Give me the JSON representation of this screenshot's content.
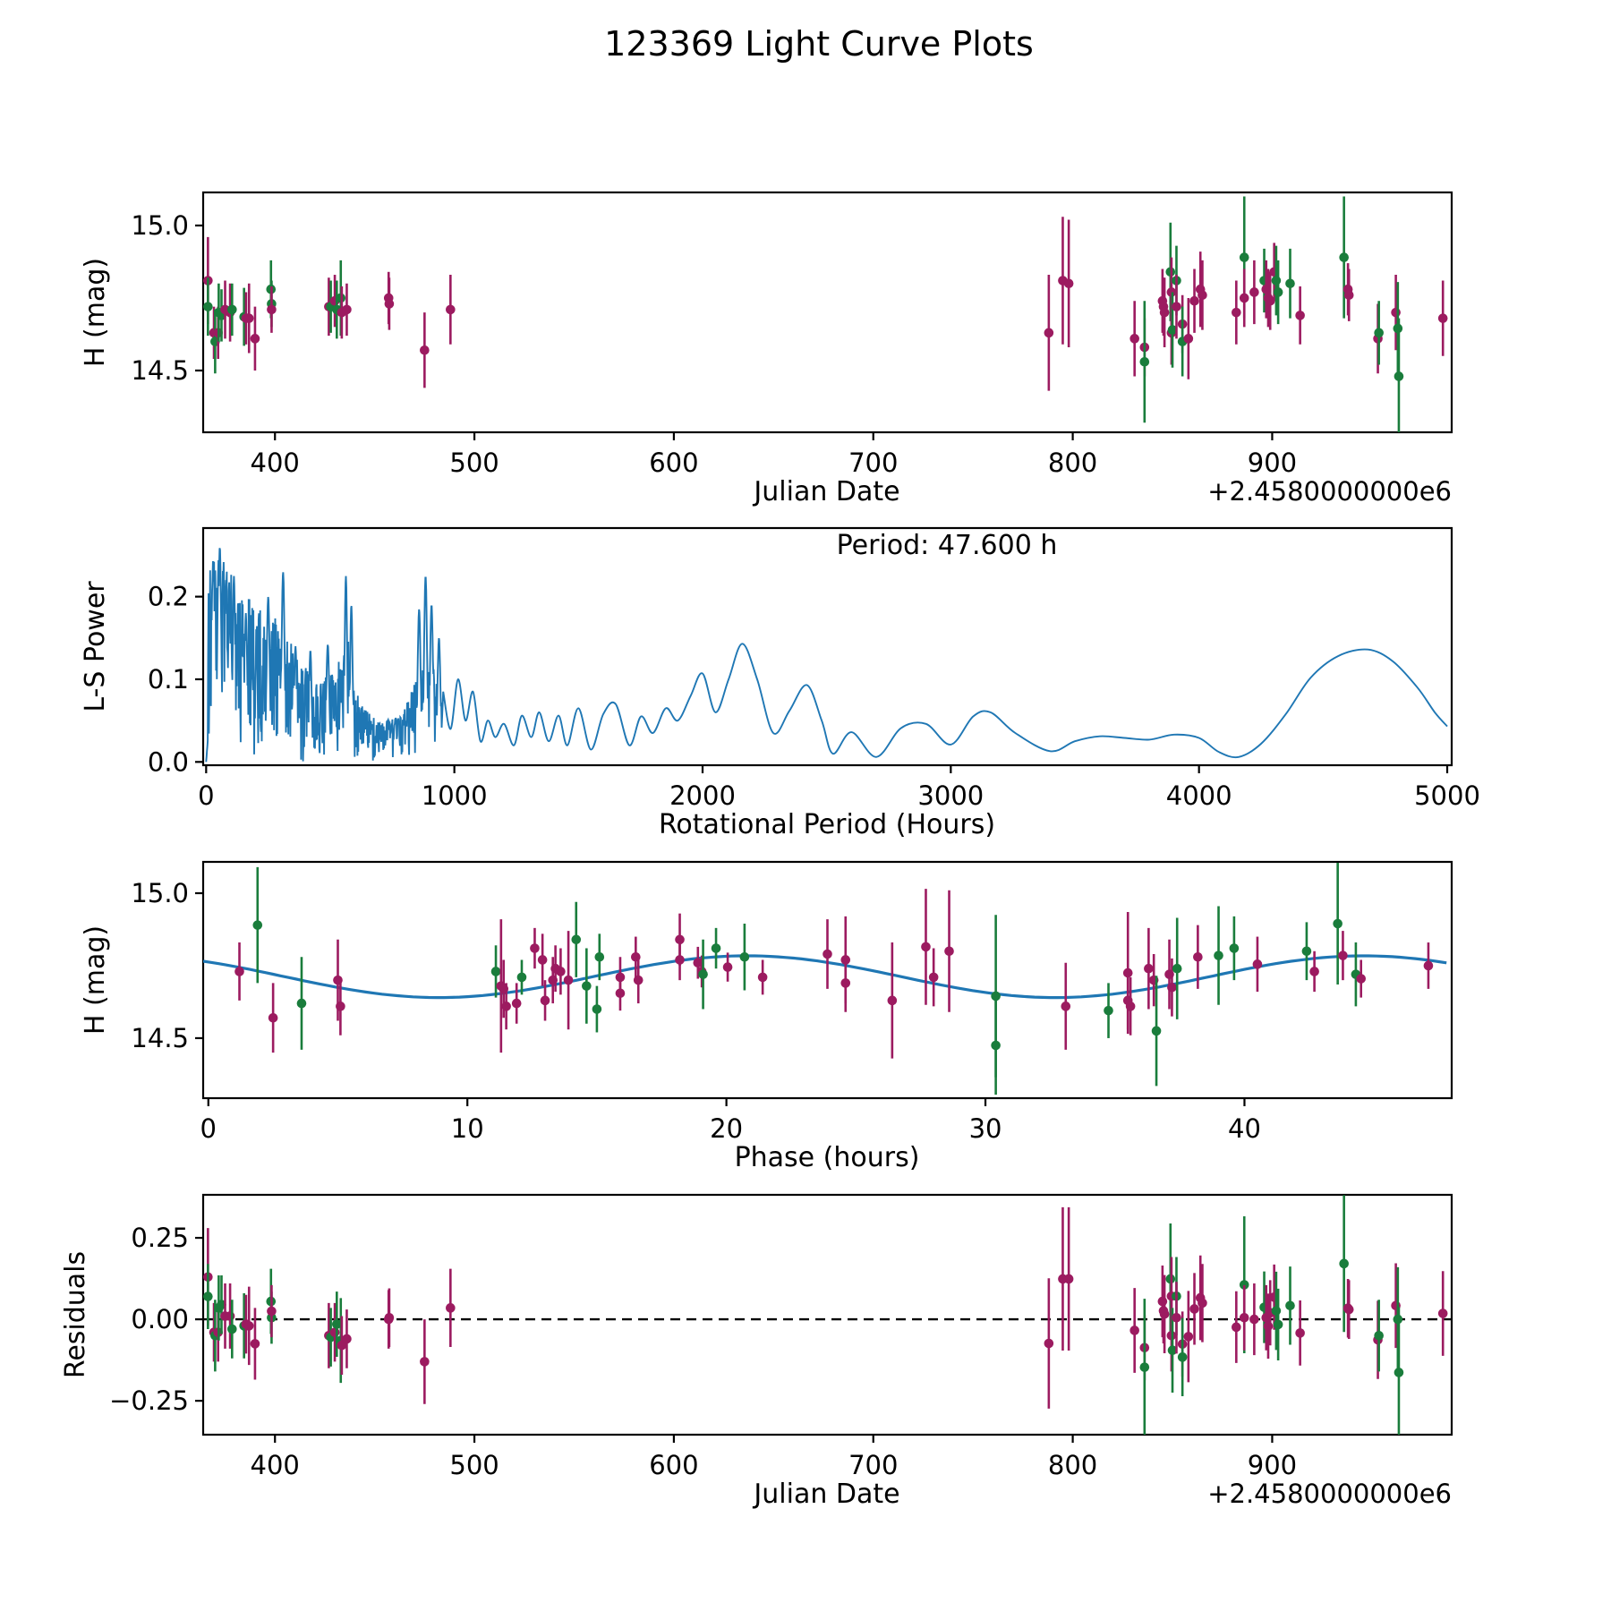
{
  "title": "123369 Light Curve Plots",
  "colors": {
    "background": "#ffffff",
    "axis": "#000000",
    "line_blue": "#1f77b4",
    "series_purple": "#9c1b60",
    "series_green": "#1a7d3c"
  },
  "panels": {
    "jd_mag": {
      "ylabel": "H (mag)",
      "xlabel": "Julian Date",
      "offset_label": "+2.4580000000e6",
      "x_tick_labels": [
        "400",
        "500",
        "600",
        "700",
        "800",
        "900"
      ],
      "x_tick_values": [
        400,
        500,
        600,
        700,
        800,
        900
      ],
      "y_tick_labels": [
        "15.0",
        "14.5"
      ],
      "y_tick_values": [
        15.0,
        14.5
      ],
      "xlim": [
        364,
        990
      ],
      "ylim": [
        14.287,
        15.114
      ]
    },
    "periodogram": {
      "ylabel": "L-S Power",
      "xlabel": "Rotational Period (Hours)",
      "annotation": "Period: 47.600 h",
      "x_tick_labels": [
        "0",
        "1000",
        "2000",
        "3000",
        "4000",
        "5000"
      ],
      "x_tick_values": [
        0,
        1000,
        2000,
        3000,
        4000,
        5000
      ],
      "y_tick_labels": [
        "0.0",
        "0.1",
        "0.2"
      ],
      "y_tick_values": [
        0.0,
        0.1,
        0.2
      ],
      "xlim": [
        -12,
        5018
      ],
      "ylim": [
        -0.004,
        0.283
      ]
    },
    "phase": {
      "ylabel": "H (mag)",
      "xlabel": "Phase (hours)",
      "x_tick_labels": [
        "0",
        "10",
        "20",
        "30",
        "40"
      ],
      "x_tick_values": [
        0,
        10,
        20,
        30,
        40
      ],
      "y_tick_labels": [
        "15.0",
        "14.5"
      ],
      "y_tick_values": [
        15.0,
        14.5
      ],
      "xlim": [
        -0.2,
        48.0
      ],
      "ylim": [
        14.293,
        15.108
      ]
    },
    "residuals": {
      "ylabel": "Residuals",
      "xlabel": "Julian Date",
      "offset_label": "+2.4580000000e6",
      "x_tick_labels": [
        "400",
        "500",
        "600",
        "700",
        "800",
        "900"
      ],
      "x_tick_values": [
        400,
        500,
        600,
        700,
        800,
        900
      ],
      "y_tick_labels": [
        "−0.25",
        "0.00",
        "0.25"
      ],
      "y_tick_values": [
        -0.25,
        0.0,
        0.25
      ],
      "xlim": [
        364,
        990
      ],
      "ylim": [
        -0.354,
        0.382
      ],
      "zero_line": 0.0
    }
  },
  "chart_data": {
    "type": "multi-panel: errorbar scatter (panels 1,3,4) + line periodogram (panel 2)",
    "period_hours": 47.6,
    "jd_offset": 2458000000,
    "fit_curve": {
      "mean_mag": 14.712,
      "amplitude_mag": 0.072,
      "cosine_period_hours": 23.8,
      "phase_of_max_hours": 20.8
    },
    "point_format": "jd_points: [JD-2458000000, H mag, err, residual, color]; phase_points: [phase h, H mag, err, color]",
    "jd_points": [
      [
        366.4,
        14.81,
        0.15,
        0.13,
        "p"
      ],
      [
        366.4,
        14.72,
        0.1,
        0.07,
        "g"
      ],
      [
        369.4,
        14.63,
        0.09,
        -0.04,
        "p"
      ],
      [
        370.0,
        14.6,
        0.11,
        -0.05,
        "g"
      ],
      [
        371.5,
        14.63,
        0.09,
        -0.04,
        "p"
      ],
      [
        371.8,
        14.7,
        0.1,
        0.035,
        "g"
      ],
      [
        373.2,
        14.69,
        0.09,
        0.045,
        "g"
      ],
      [
        375.0,
        14.71,
        0.1,
        0.01,
        "p"
      ],
      [
        377.5,
        14.7,
        0.1,
        0.01,
        "p"
      ],
      [
        378.5,
        14.71,
        0.09,
        -0.03,
        "g"
      ],
      [
        384.5,
        14.685,
        0.1,
        -0.02,
        "g"
      ],
      [
        385.5,
        14.68,
        0.09,
        -0.015,
        "p"
      ],
      [
        387.0,
        14.68,
        0.12,
        -0.02,
        "p"
      ],
      [
        390.0,
        14.61,
        0.11,
        -0.075,
        "p"
      ],
      [
        398.0,
        14.78,
        0.1,
        0.055,
        "g"
      ],
      [
        398.3,
        14.73,
        0.08,
        0.005,
        "g"
      ],
      [
        398.3,
        14.71,
        0.08,
        0.025,
        "p"
      ],
      [
        427.0,
        14.72,
        0.1,
        -0.05,
        "p"
      ],
      [
        428.0,
        14.72,
        0.09,
        -0.055,
        "g"
      ],
      [
        430.0,
        14.74,
        0.09,
        -0.04,
        "p"
      ],
      [
        431.0,
        14.71,
        0.1,
        -0.015,
        "g"
      ],
      [
        433.0,
        14.75,
        0.13,
        -0.065,
        "g"
      ],
      [
        433.5,
        14.7,
        0.09,
        -0.08,
        "p"
      ],
      [
        436.0,
        14.71,
        0.09,
        -0.06,
        "p"
      ],
      [
        457.0,
        14.75,
        0.09,
        0.0,
        "p"
      ],
      [
        457.3,
        14.73,
        0.09,
        0.005,
        "p"
      ],
      [
        475.0,
        14.57,
        0.13,
        -0.13,
        "p"
      ],
      [
        488.0,
        14.71,
        0.12,
        0.035,
        "p"
      ],
      [
        788,
        14.63,
        0.2,
        -0.074,
        "p"
      ],
      [
        795,
        14.81,
        0.22,
        0.124,
        "p"
      ],
      [
        798,
        14.8,
        0.22,
        0.124,
        "p"
      ],
      [
        831,
        14.61,
        0.13,
        -0.034,
        "p"
      ],
      [
        836,
        14.58,
        0.1,
        -0.087,
        "p"
      ],
      [
        836,
        14.53,
        0.21,
        -0.147,
        "g"
      ],
      [
        845,
        14.74,
        0.11,
        0.055,
        "p"
      ],
      [
        845.5,
        14.72,
        0.1,
        0.026,
        "p"
      ],
      [
        846,
        14.7,
        0.12,
        0.016,
        "p"
      ],
      [
        849,
        14.84,
        0.17,
        0.124,
        "g"
      ],
      [
        849.5,
        14.77,
        0.12,
        0.071,
        "p"
      ],
      [
        849.5,
        14.63,
        0.11,
        -0.05,
        "p"
      ],
      [
        850,
        14.64,
        0.13,
        -0.095,
        "g"
      ],
      [
        852,
        14.81,
        0.12,
        0.071,
        "g"
      ],
      [
        852,
        14.72,
        0.11,
        0.005,
        "p"
      ],
      [
        855,
        14.66,
        0.1,
        -0.076,
        "p"
      ],
      [
        855,
        14.6,
        0.12,
        -0.116,
        "g"
      ],
      [
        858,
        14.61,
        0.14,
        -0.053,
        "p"
      ],
      [
        861,
        14.74,
        0.11,
        0.032,
        "p"
      ],
      [
        864,
        14.78,
        0.13,
        0.066,
        "p"
      ],
      [
        865,
        14.76,
        0.12,
        0.05,
        "p"
      ],
      [
        882,
        14.7,
        0.11,
        -0.024,
        "p"
      ],
      [
        886,
        14.89,
        0.21,
        0.106,
        "g"
      ],
      [
        886,
        14.75,
        0.1,
        0.005,
        "p"
      ],
      [
        891,
        14.77,
        0.11,
        0.0,
        "p"
      ],
      [
        896,
        14.81,
        0.11,
        0.037,
        "g"
      ],
      [
        897,
        14.78,
        0.1,
        0.005,
        "p"
      ],
      [
        898,
        14.75,
        0.1,
        -0.021,
        "p"
      ],
      [
        899,
        14.74,
        0.1,
        0.02,
        "p"
      ],
      [
        901,
        14.84,
        0.1,
        0.068,
        "p"
      ],
      [
        902,
        14.81,
        0.12,
        0.026,
        "g"
      ],
      [
        903,
        14.77,
        0.11,
        -0.016,
        "g"
      ],
      [
        909,
        14.8,
        0.12,
        0.042,
        "g"
      ],
      [
        914,
        14.69,
        0.1,
        -0.042,
        "p"
      ],
      [
        936,
        14.89,
        0.21,
        0.171,
        "g"
      ],
      [
        938,
        14.78,
        0.09,
        0.034,
        "p"
      ],
      [
        938.5,
        14.76,
        0.09,
        0.03,
        "p"
      ],
      [
        953,
        14.61,
        0.12,
        -0.063,
        "p"
      ],
      [
        953.5,
        14.63,
        0.11,
        -0.05,
        "g"
      ],
      [
        962,
        14.7,
        0.13,
        0.042,
        "p"
      ],
      [
        963,
        14.645,
        0.16,
        0.0,
        "g"
      ],
      [
        963.5,
        14.48,
        0.2,
        -0.163,
        "g"
      ],
      [
        985.6,
        14.68,
        0.13,
        0.018,
        "p"
      ]
    ],
    "phase_points": [
      [
        1.2,
        14.73,
        0.1,
        "p"
      ],
      [
        1.9,
        14.89,
        0.2,
        "g"
      ],
      [
        2.5,
        14.57,
        0.12,
        "p"
      ],
      [
        3.6,
        14.62,
        0.16,
        "g"
      ],
      [
        5.0,
        14.7,
        0.14,
        "p"
      ],
      [
        5.1,
        14.61,
        0.1,
        "p"
      ],
      [
        11.1,
        14.73,
        0.09,
        "g"
      ],
      [
        11.3,
        14.68,
        0.23,
        "p"
      ],
      [
        11.4,
        14.67,
        0.1,
        "p"
      ],
      [
        11.5,
        14.61,
        0.08,
        "p"
      ],
      [
        11.9,
        14.62,
        0.07,
        "p"
      ],
      [
        12.1,
        14.71,
        0.06,
        "g"
      ],
      [
        12.6,
        14.81,
        0.07,
        "p"
      ],
      [
        12.9,
        14.77,
        0.09,
        "p"
      ],
      [
        13.0,
        14.63,
        0.07,
        "p"
      ],
      [
        13.3,
        14.7,
        0.08,
        "p"
      ],
      [
        13.4,
        14.74,
        0.08,
        "p"
      ],
      [
        13.6,
        14.73,
        0.08,
        "p"
      ],
      [
        13.9,
        14.7,
        0.17,
        "p"
      ],
      [
        14.2,
        14.84,
        0.13,
        "g"
      ],
      [
        14.6,
        14.68,
        0.13,
        "g"
      ],
      [
        15.0,
        14.6,
        0.08,
        "g"
      ],
      [
        15.1,
        14.78,
        0.08,
        "g"
      ],
      [
        15.9,
        14.71,
        0.07,
        "p"
      ],
      [
        15.9,
        14.655,
        0.06,
        "p"
      ],
      [
        16.5,
        14.78,
        0.07,
        "p"
      ],
      [
        16.6,
        14.7,
        0.08,
        "p"
      ],
      [
        18.2,
        14.84,
        0.09,
        "p"
      ],
      [
        18.2,
        14.77,
        0.07,
        "p"
      ],
      [
        18.9,
        14.76,
        0.055,
        "p"
      ],
      [
        19.05,
        14.73,
        0.055,
        "p"
      ],
      [
        19.1,
        14.72,
        0.12,
        "g"
      ],
      [
        19.6,
        14.81,
        0.07,
        "g"
      ],
      [
        20.05,
        14.745,
        0.05,
        "p"
      ],
      [
        20.7,
        14.78,
        0.115,
        "g"
      ],
      [
        21.4,
        14.71,
        0.06,
        "p"
      ],
      [
        23.9,
        14.79,
        0.12,
        "p"
      ],
      [
        24.6,
        14.77,
        0.15,
        "p"
      ],
      [
        24.6,
        14.69,
        0.1,
        "p"
      ],
      [
        26.4,
        14.63,
        0.2,
        "p"
      ],
      [
        27.7,
        14.815,
        0.2,
        "p"
      ],
      [
        28.0,
        14.71,
        0.1,
        "p"
      ],
      [
        28.6,
        14.8,
        0.21,
        "p"
      ],
      [
        30.4,
        14.645,
        0.28,
        "g"
      ],
      [
        30.4,
        14.475,
        0.17,
        "g"
      ],
      [
        33.1,
        14.61,
        0.15,
        "p"
      ],
      [
        34.75,
        14.595,
        0.095,
        "g"
      ],
      [
        35.5,
        14.725,
        0.21,
        "p"
      ],
      [
        35.5,
        14.63,
        0.1,
        "p"
      ],
      [
        35.6,
        14.61,
        0.1,
        "p"
      ],
      [
        36.3,
        14.74,
        0.14,
        "p"
      ],
      [
        36.5,
        14.7,
        0.09,
        "p"
      ],
      [
        36.6,
        14.525,
        0.19,
        "g"
      ],
      [
        37.1,
        14.72,
        0.12,
        "p"
      ],
      [
        37.2,
        14.675,
        0.1,
        "p"
      ],
      [
        37.4,
        14.74,
        0.175,
        "g"
      ],
      [
        38.2,
        14.78,
        0.11,
        "p"
      ],
      [
        39.0,
        14.785,
        0.17,
        "g"
      ],
      [
        39.6,
        14.81,
        0.11,
        "g"
      ],
      [
        40.5,
        14.755,
        0.095,
        "p"
      ],
      [
        42.4,
        14.8,
        0.1,
        "g"
      ],
      [
        42.7,
        14.73,
        0.07,
        "p"
      ],
      [
        43.6,
        14.895,
        0.21,
        "g"
      ],
      [
        43.8,
        14.785,
        0.085,
        "p"
      ],
      [
        44.3,
        14.72,
        0.11,
        "g"
      ],
      [
        44.5,
        14.705,
        0.065,
        "p"
      ],
      [
        47.1,
        14.75,
        0.08,
        "p"
      ]
    ],
    "periodogram": {
      "noise_region_hours": [
        0,
        950
      ],
      "noise_envelope": [
        [
          0,
          0.23
        ],
        [
          40,
          0.26
        ],
        [
          120,
          0.22
        ],
        [
          200,
          0.19
        ],
        [
          300,
          0.17
        ],
        [
          380,
          0.12
        ],
        [
          450,
          0.1
        ],
        [
          520,
          0.11
        ],
        [
          570,
          0.15
        ],
        [
          620,
          0.07
        ],
        [
          700,
          0.05
        ],
        [
          790,
          0.055
        ],
        [
          830,
          0.09
        ],
        [
          900,
          0.13
        ],
        [
          950,
          0.08
        ]
      ],
      "peaks": [
        [
          28,
          0.245,
          5
        ],
        [
          55,
          0.26,
          6
        ],
        [
          80,
          0.22,
          5
        ],
        [
          112,
          0.225,
          5
        ],
        [
          160,
          0.18,
          5
        ],
        [
          250,
          0.2,
          6
        ],
        [
          310,
          0.23,
          6
        ],
        [
          360,
          0.14,
          5
        ],
        [
          420,
          0.135,
          5
        ],
        [
          490,
          0.142,
          6
        ],
        [
          563,
          0.225,
          5
        ],
        [
          585,
          0.19,
          5
        ],
        [
          858,
          0.185,
          6
        ],
        [
          884,
          0.225,
          6
        ],
        [
          908,
          0.19,
          6
        ],
        [
          938,
          0.15,
          6
        ]
      ],
      "smooth_points": [
        [
          955,
          0.085
        ],
        [
          985,
          0.04
        ],
        [
          1015,
          0.1
        ],
        [
          1045,
          0.05
        ],
        [
          1075,
          0.085
        ],
        [
          1105,
          0.025
        ],
        [
          1135,
          0.05
        ],
        [
          1165,
          0.03
        ],
        [
          1200,
          0.046
        ],
        [
          1240,
          0.02
        ],
        [
          1272,
          0.056
        ],
        [
          1310,
          0.03
        ],
        [
          1342,
          0.06
        ],
        [
          1380,
          0.025
        ],
        [
          1420,
          0.056
        ],
        [
          1455,
          0.02
        ],
        [
          1500,
          0.065
        ],
        [
          1550,
          0.015
        ],
        [
          1600,
          0.058
        ],
        [
          1650,
          0.07
        ],
        [
          1705,
          0.02
        ],
        [
          1752,
          0.055
        ],
        [
          1800,
          0.035
        ],
        [
          1852,
          0.065
        ],
        [
          1900,
          0.05
        ],
        [
          1952,
          0.08
        ],
        [
          2000,
          0.107
        ],
        [
          2052,
          0.06
        ],
        [
          2105,
          0.1
        ],
        [
          2160,
          0.143
        ],
        [
          2220,
          0.1
        ],
        [
          2285,
          0.035
        ],
        [
          2350,
          0.062
        ],
        [
          2420,
          0.093
        ],
        [
          2480,
          0.05
        ],
        [
          2525,
          0.01
        ],
        [
          2600,
          0.036
        ],
        [
          2700,
          0.006
        ],
        [
          2800,
          0.041
        ],
        [
          2900,
          0.046
        ],
        [
          3000,
          0.021
        ],
        [
          3090,
          0.055
        ],
        [
          3160,
          0.06
        ],
        [
          3260,
          0.035
        ],
        [
          3400,
          0.013
        ],
        [
          3500,
          0.025
        ],
        [
          3600,
          0.031
        ],
        [
          3700,
          0.029
        ],
        [
          3800,
          0.027
        ],
        [
          3900,
          0.033
        ],
        [
          4000,
          0.029
        ],
        [
          4080,
          0.012
        ],
        [
          4160,
          0.006
        ],
        [
          4250,
          0.022
        ],
        [
          4350,
          0.058
        ],
        [
          4450,
          0.102
        ],
        [
          4560,
          0.128
        ],
        [
          4680,
          0.136
        ],
        [
          4780,
          0.122
        ],
        [
          4880,
          0.09
        ],
        [
          4950,
          0.06
        ],
        [
          5000,
          0.043
        ]
      ]
    }
  }
}
